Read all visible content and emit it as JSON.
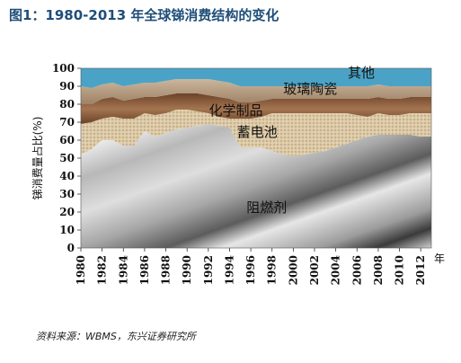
{
  "header": {
    "title": "图1：1980-2013 年全球锑消费结构的变化"
  },
  "footer": {
    "source": "资料来源：WBMS，东兴证券研究所"
  },
  "chart_data": {
    "type": "area",
    "stacked": true,
    "title": "图1：1980-2013 年全球锑消费结构的变化",
    "ylabel": "锑消费量占比(%)",
    "xlabel": "年",
    "ylim": [
      0,
      100
    ],
    "xlim": [
      1980,
      2013
    ],
    "yticks": [
      "0",
      "10",
      "20",
      "30",
      "40",
      "50",
      "60",
      "70",
      "80",
      "90",
      "100"
    ],
    "xticks": [
      "1980",
      "1982",
      "1984",
      "1986",
      "1988",
      "1990",
      "1992",
      "1994",
      "1996",
      "1998",
      "2000",
      "2002",
      "2004",
      "2006",
      "2008",
      "2010",
      "2012"
    ],
    "x": [
      1980,
      1981,
      1982,
      1983,
      1984,
      1985,
      1986,
      1987,
      1988,
      1989,
      1990,
      1991,
      1992,
      1993,
      1994,
      1995,
      1996,
      1997,
      1998,
      1999,
      2000,
      2001,
      2002,
      2003,
      2004,
      2005,
      2006,
      2007,
      2008,
      2009,
      2010,
      2011,
      2012,
      2013
    ],
    "series": [
      {
        "name": "阻燃剂",
        "color": "#9a9a9a",
        "values": [
          52,
          55,
          60,
          60,
          57,
          57,
          65,
          62,
          64,
          66,
          67,
          68,
          69,
          68,
          67,
          56,
          56,
          56,
          54,
          52,
          51,
          52,
          53,
          54,
          56,
          58,
          60,
          62,
          63,
          63,
          63,
          63,
          62,
          62
        ]
      },
      {
        "name": "蓄电池",
        "color": "#d6c3a0",
        "values": [
          17,
          15,
          12,
          13,
          15,
          15,
          10,
          12,
          11,
          11,
          10,
          8,
          6,
          5,
          5,
          16,
          16,
          17,
          21,
          23,
          24,
          23,
          22,
          21,
          19,
          17,
          14,
          11,
          12,
          11,
          11,
          12,
          13,
          13
        ]
      },
      {
        "name": "化学制品",
        "color": "#8a5a3a",
        "values": [
          11,
          10,
          11,
          11,
          10,
          11,
          9,
          10,
          10,
          9,
          9,
          10,
          10,
          11,
          11,
          9,
          9,
          9,
          8,
          8,
          8,
          8,
          8,
          8,
          8,
          8,
          9,
          10,
          9,
          9,
          9,
          9,
          9,
          9
        ]
      },
      {
        "name": "玻璃陶瓷",
        "color": "#b49a7e",
        "values": [
          10,
          9,
          8,
          8,
          8,
          8,
          8,
          8,
          8,
          8,
          8,
          8,
          9,
          9,
          9,
          9,
          9,
          8,
          7,
          7,
          7,
          7,
          7,
          7,
          7,
          7,
          7,
          7,
          7,
          7,
          7,
          6,
          6,
          6
        ]
      },
      {
        "name": "其他",
        "color": "#4aa3c6",
        "values": [
          10,
          11,
          9,
          8,
          10,
          9,
          8,
          8,
          7,
          6,
          6,
          6,
          6,
          7,
          8,
          10,
          10,
          10,
          10,
          10,
          10,
          10,
          10,
          10,
          10,
          10,
          10,
          10,
          9,
          10,
          10,
          10,
          10,
          10
        ]
      }
    ]
  }
}
